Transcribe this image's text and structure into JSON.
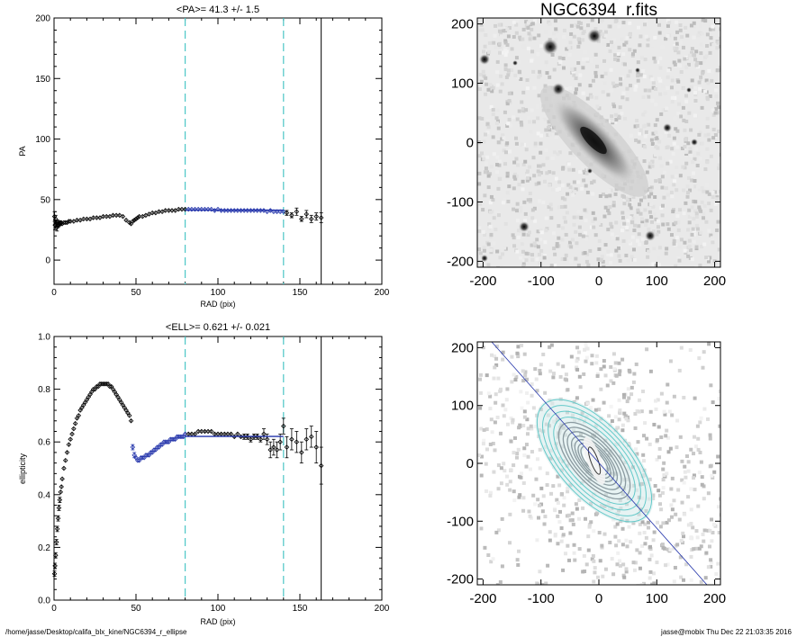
{
  "colors": {
    "pa_fit": "#2233aa",
    "guide": "#4cc6c6",
    "data": "#000000",
    "contour": "#63c9c9",
    "contour_inner": "#ffffff",
    "axis_line": "#2233aa"
  },
  "chart_data": [
    {
      "type": "scatter",
      "title": "<PA>=  41.3 +/-   1.5",
      "xlabel": "RAD (pix)",
      "ylabel": "PA",
      "xlim": [
        0,
        200
      ],
      "ylim": [
        -20,
        200
      ],
      "xticks": [
        "0",
        "50",
        "100",
        "150",
        "200"
      ],
      "yticks": [
        "0",
        "50",
        "100",
        "150",
        "200"
      ],
      "vlines": {
        "guides": [
          80,
          140
        ],
        "limit": 163
      },
      "mean": {
        "value": 41.3,
        "err": 1.5,
        "range": [
          80,
          140
        ]
      },
      "series": [
        {
          "x": [
            0.3,
            0.6,
            1,
            1.4,
            1.8,
            2.2,
            2.6,
            3,
            3.5,
            4,
            5,
            6,
            7,
            8,
            9,
            10,
            12,
            14,
            16,
            18,
            20,
            22,
            24,
            26,
            28,
            30,
            32,
            34,
            36,
            38,
            40,
            42,
            44,
            46,
            47,
            48,
            49,
            50,
            51,
            52,
            54,
            56,
            58,
            60,
            62,
            64,
            66,
            68,
            70,
            72,
            74,
            76,
            78,
            80
          ],
          "y": [
            36,
            29,
            34,
            30,
            27,
            31,
            29,
            30,
            30,
            31,
            30,
            31,
            31,
            31,
            32,
            32,
            32,
            33,
            33,
            34,
            34,
            34,
            35,
            35,
            35,
            36,
            36,
            36,
            37,
            37,
            37,
            36,
            33,
            31,
            30,
            32,
            33,
            34,
            35,
            36,
            36,
            37,
            38,
            39,
            39,
            40,
            40,
            41,
            41,
            41,
            41,
            42,
            42,
            42
          ],
          "err": [
            4,
            4,
            3,
            3,
            3,
            2,
            2,
            2,
            1.5,
            1.5,
            1,
            1,
            1,
            1,
            1,
            1,
            1,
            1,
            1,
            1,
            1,
            1,
            1,
            1,
            1,
            1,
            1,
            1,
            1,
            1,
            1,
            1,
            1,
            1,
            1,
            1,
            1,
            1,
            1,
            1,
            1,
            1,
            1,
            1,
            1,
            1,
            1,
            1,
            1,
            1,
            1,
            1,
            1,
            1
          ]
        },
        {
          "x": [
            82,
            84,
            86,
            88,
            90,
            92,
            94,
            96,
            98,
            100,
            102,
            104,
            106,
            108,
            110,
            112,
            114,
            116,
            118,
            120,
            122,
            124,
            126,
            128,
            130,
            132,
            134,
            136,
            138,
            140
          ],
          "y": [
            42,
            42,
            42,
            42,
            42,
            42,
            42,
            42,
            41,
            42,
            41,
            41,
            41,
            41,
            41,
            41,
            41,
            41,
            41,
            41,
            41,
            41,
            41,
            41,
            40,
            41,
            40,
            40,
            40,
            40
          ],
          "err": [
            1,
            1,
            1,
            1,
            1,
            1,
            1,
            1,
            1,
            1,
            1,
            1,
            1,
            1,
            1,
            1,
            1,
            1,
            1,
            1,
            1,
            1,
            1,
            1,
            1,
            1,
            1,
            1,
            1,
            1
          ]
        },
        {
          "x": [
            142,
            145,
            148,
            151,
            154,
            157,
            160,
            163
          ],
          "y": [
            39,
            37,
            40,
            34,
            38,
            34,
            36,
            35
          ],
          "err": [
            2,
            2,
            3,
            2,
            3,
            3,
            3,
            4
          ]
        }
      ]
    },
    {
      "type": "image",
      "title": "NGC6394_r.fits",
      "xlim": [
        -210,
        210
      ],
      "ylim": [
        -210,
        210
      ],
      "xticks": [
        "-200",
        "-100",
        "0",
        "100",
        "200"
      ],
      "yticks": [
        "-200",
        "-100",
        "0",
        "100",
        "200"
      ]
    },
    {
      "type": "scatter",
      "title": "<ELL>= 0.621 +/-  0.021",
      "xlabel": "RAD (pix)",
      "ylabel": "ellipticity",
      "xlim": [
        0,
        200
      ],
      "ylim": [
        0,
        1
      ],
      "xticks": [
        "0",
        "50",
        "100",
        "150",
        "200"
      ],
      "yticks": [
        "0.0",
        "0.2",
        "0.4",
        "0.6",
        "0.8",
        "1.0"
      ],
      "vlines": {
        "guides": [
          80,
          140
        ],
        "limit": 163
      },
      "mean": {
        "value": 0.621,
        "err": 0.021,
        "range": [
          80,
          140
        ]
      },
      "series": [
        {
          "x": [
            0.3,
            0.6,
            1,
            1.5,
            2,
            2.5,
            3,
            3.5,
            4,
            4.5,
            5,
            6,
            7,
            8,
            9,
            10,
            11,
            12,
            13,
            14,
            15,
            16,
            17,
            18,
            19,
            20,
            21,
            22,
            23,
            24,
            25,
            26,
            27,
            28,
            29,
            30,
            31,
            32,
            33,
            34,
            35,
            36,
            37,
            38,
            39,
            40,
            41,
            42,
            43,
            44,
            45,
            46,
            47
          ],
          "y": [
            0.1,
            0.13,
            0.17,
            0.22,
            0.27,
            0.31,
            0.35,
            0.38,
            0.41,
            0.43,
            0.46,
            0.5,
            0.53,
            0.56,
            0.59,
            0.61,
            0.63,
            0.65,
            0.67,
            0.69,
            0.7,
            0.72,
            0.73,
            0.74,
            0.75,
            0.76,
            0.77,
            0.78,
            0.79,
            0.8,
            0.8,
            0.81,
            0.81,
            0.82,
            0.82,
            0.82,
            0.82,
            0.82,
            0.82,
            0.81,
            0.81,
            0.8,
            0.79,
            0.78,
            0.77,
            0.76,
            0.75,
            0.74,
            0.73,
            0.72,
            0.71,
            0.7,
            0.68
          ],
          "err": [
            0.01,
            0.01,
            0.01,
            0.01,
            0.01,
            0.01,
            0.01,
            0.01,
            0.005,
            0.005,
            0.005,
            0.005,
            0.005,
            0.005,
            0.005,
            0.005,
            0.005,
            0.005,
            0.005,
            0.005,
            0.005,
            0.005,
            0.005,
            0.005,
            0.005,
            0.005,
            0.005,
            0.005,
            0.005,
            0.005,
            0.005,
            0.005,
            0.005,
            0.005,
            0.005,
            0.005,
            0.005,
            0.005,
            0.005,
            0.005,
            0.005,
            0.005,
            0.005,
            0.005,
            0.005,
            0.005,
            0.005,
            0.005,
            0.005,
            0.005,
            0.005,
            0.005,
            0.005
          ]
        },
        {
          "x": [
            48,
            49,
            50,
            51,
            52,
            53,
            54,
            55,
            56,
            57,
            58,
            59,
            60,
            61,
            62,
            63,
            64,
            65,
            66,
            67,
            68,
            69,
            70,
            71,
            72,
            73,
            74,
            75,
            76,
            77,
            78,
            79,
            80
          ],
          "y": [
            0.58,
            0.55,
            0.54,
            0.53,
            0.53,
            0.54,
            0.54,
            0.54,
            0.55,
            0.55,
            0.55,
            0.56,
            0.56,
            0.57,
            0.57,
            0.58,
            0.58,
            0.59,
            0.59,
            0.6,
            0.6,
            0.6,
            0.6,
            0.61,
            0.61,
            0.61,
            0.61,
            0.62,
            0.62,
            0.62,
            0.62,
            0.62,
            0.63
          ],
          "err": [
            0.01,
            0.01,
            0.005,
            0.005,
            0.005,
            0.005,
            0.005,
            0.005,
            0.005,
            0.005,
            0.005,
            0.005,
            0.005,
            0.005,
            0.005,
            0.005,
            0.005,
            0.005,
            0.005,
            0.005,
            0.005,
            0.005,
            0.005,
            0.005,
            0.005,
            0.005,
            0.005,
            0.005,
            0.005,
            0.005,
            0.005,
            0.005,
            0.005
          ]
        },
        {
          "x": [
            82,
            84,
            86,
            88,
            90,
            92,
            94,
            96,
            98,
            100,
            102,
            104,
            106,
            108,
            110,
            112,
            114,
            116,
            118,
            120,
            122,
            124,
            126,
            128,
            130,
            132,
            134,
            136,
            138,
            140
          ],
          "y": [
            0.63,
            0.63,
            0.63,
            0.64,
            0.64,
            0.64,
            0.64,
            0.64,
            0.63,
            0.63,
            0.63,
            0.63,
            0.63,
            0.63,
            0.62,
            0.63,
            0.62,
            0.62,
            0.62,
            0.61,
            0.62,
            0.62,
            0.61,
            0.63,
            0.61,
            0.57,
            0.58,
            0.57,
            0.6,
            0.66
          ],
          "err": [
            0.005,
            0.005,
            0.005,
            0.005,
            0.005,
            0.005,
            0.005,
            0.005,
            0.005,
            0.005,
            0.005,
            0.005,
            0.005,
            0.005,
            0.005,
            0.005,
            0.005,
            0.01,
            0.01,
            0.01,
            0.01,
            0.01,
            0.01,
            0.02,
            0.02,
            0.03,
            0.03,
            0.03,
            0.03,
            0.03
          ]
        },
        {
          "x": [
            142,
            145,
            148,
            151,
            154,
            157,
            160,
            163
          ],
          "y": [
            0.58,
            0.61,
            0.6,
            0.56,
            0.61,
            0.62,
            0.58,
            0.51
          ],
          "err": [
            0.04,
            0.04,
            0.04,
            0.04,
            0.04,
            0.04,
            0.06,
            0.07
          ]
        }
      ]
    },
    {
      "type": "image",
      "title": "",
      "xlim": [
        -210,
        210
      ],
      "ylim": [
        -210,
        210
      ],
      "xticks": [
        "-200",
        "-100",
        "0",
        "100",
        "200"
      ],
      "yticks": [
        "-200",
        "-100",
        "0",
        "100",
        "200"
      ]
    }
  ],
  "footer": {
    "left": "/home/jasse/Desktop/califa_blx_kine/NGC6394_r_ellipse",
    "right": "jasse@mobix  Thu Dec 22 21:03:35 2016"
  }
}
